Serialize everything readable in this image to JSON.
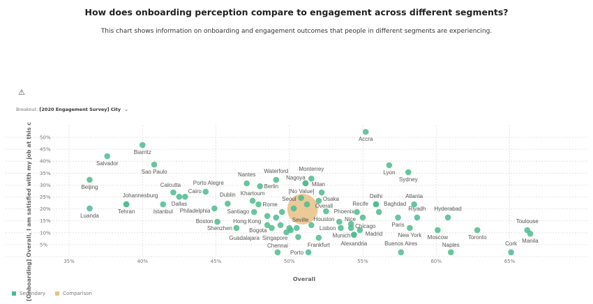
{
  "header": {
    "title": "How does onboarding perception compare to engagement across different segments?",
    "subtitle": "This chart shows information on onboarding and engagement outcomes that people in different segments are experiencing."
  },
  "warning_icon": "warning-triangle-icon",
  "breakout": {
    "label": "Breakout:",
    "value": "[2020 Engagement Survey] City",
    "icon": "chevron-down-icon"
  },
  "legend": [
    {
      "label": "Secondary",
      "color": "#4dbb8e"
    },
    {
      "label": "Comparison",
      "color": "#e2c48d"
    }
  ],
  "chart_data": {
    "type": "scatter",
    "xlabel": "Overall",
    "ylabel": "[Onboarding] Overall, I am satisfied with my job at this c",
    "xlim": [
      33,
      68
    ],
    "ylim": [
      0,
      55
    ],
    "x_ticks": [
      "35%",
      "40%",
      "45%",
      "50%",
      "55%",
      "60%",
      "65%"
    ],
    "x_tick_values": [
      35,
      40,
      45,
      50,
      55,
      60,
      65
    ],
    "y_ticks": [
      "5%",
      "10%",
      "15%",
      "20%",
      "25%",
      "30%",
      "35%",
      "40%",
      "45%",
      "50%"
    ],
    "y_tick_values": [
      5,
      10,
      15,
      20,
      25,
      30,
      35,
      40,
      45,
      50
    ],
    "grid": true,
    "legend_position": "bottom-left",
    "series": [
      {
        "name": "Secondary",
        "color": "#4dbb8e",
        "points": [
          {
            "label": "Accra",
            "x": 55.2,
            "y": 52.3
          },
          {
            "label": "Biarritz",
            "x": 40.0,
            "y": 46.8
          },
          {
            "label": "Salvador",
            "x": 37.6,
            "y": 42.1
          },
          {
            "label": "Sao Paulo",
            "x": 40.8,
            "y": 38.6
          },
          {
            "label": "Beijing",
            "x": 36.4,
            "y": 32.2
          },
          {
            "label": "Luanda",
            "x": 36.4,
            "y": 20.2
          },
          {
            "label": "Johannesburg",
            "x": 38.9,
            "y": 22.0
          },
          {
            "label": "Tehran",
            "x": 38.9,
            "y": 21.9
          },
          {
            "label": "Istanbul",
            "x": 41.4,
            "y": 21.9
          },
          {
            "label": "Calcutta",
            "x": 42.1,
            "y": 26.9
          },
          {
            "label": "Dallas",
            "x": 42.5,
            "y": 25.1
          },
          {
            "label": "Cairo",
            "x": 42.9,
            "y": 25.1
          },
          {
            "label": "Porto Alegre",
            "x": 44.3,
            "y": 27.2
          },
          {
            "label": "Philadelphia",
            "x": 44.9,
            "y": 20.2
          },
          {
            "label": "Dublin",
            "x": 45.8,
            "y": 22.2
          },
          {
            "label": "Boston",
            "x": 45.1,
            "y": 14.6
          },
          {
            "label": "Shenzhen",
            "x": 46.4,
            "y": 12.0
          },
          {
            "label": "Santiago",
            "x": 47.6,
            "y": 18.7
          },
          {
            "label": "Khartoum",
            "x": 47.5,
            "y": 23.4
          },
          {
            "label": "Rome",
            "x": 47.9,
            "y": 21.9
          },
          {
            "label": "Nantes",
            "x": 47.1,
            "y": 30.7
          },
          {
            "label": "Berlin",
            "x": 48.0,
            "y": 29.5
          },
          {
            "label": "Waterford",
            "x": 49.1,
            "y": 32.2
          },
          {
            "label": "Nagoya",
            "x": 51.1,
            "y": 30.8
          },
          {
            "label": "Milan",
            "x": 51.1,
            "y": 30.7
          },
          {
            "label": "Monterrey",
            "x": 51.5,
            "y": 32.7
          },
          {
            "label": "[No Value]",
            "x": 52.2,
            "y": 26.9
          },
          {
            "label": "Seoul",
            "x": 50.8,
            "y": 24.6
          },
          {
            "label": "",
            "x": 51.2,
            "y": 21.9
          },
          {
            "label": "Osaka",
            "x": 52.0,
            "y": 23.4
          },
          {
            "label": "",
            "x": 50.3,
            "y": 20.2
          },
          {
            "label": "",
            "x": 49.5,
            "y": 18.7
          },
          {
            "label": "Overall",
            "x": 52.5,
            "y": 19.0
          },
          {
            "label": "Phoenix",
            "x": 54.6,
            "y": 18.7
          },
          {
            "label": "Recife",
            "x": 55.9,
            "y": 21.9
          },
          {
            "label": "Delhi",
            "x": 55.9,
            "y": 22.0
          },
          {
            "label": "Baghdad",
            "x": 56.1,
            "y": 18.7
          },
          {
            "label": "Atlanta",
            "x": 58.5,
            "y": 21.9
          },
          {
            "label": "Riyadh",
            "x": 58.7,
            "y": 16.4
          },
          {
            "label": "Paris",
            "x": 57.4,
            "y": 16.4
          },
          {
            "label": "Hyderabad",
            "x": 60.8,
            "y": 16.4
          },
          {
            "label": "New York",
            "x": 58.2,
            "y": 12.0
          },
          {
            "label": "Moscow",
            "x": 60.1,
            "y": 11.1
          },
          {
            "label": "Toronto",
            "x": 62.8,
            "y": 11.1
          },
          {
            "label": "Toulouse",
            "x": 66.2,
            "y": 11.1
          },
          {
            "label": "Manila",
            "x": 66.4,
            "y": 9.6
          },
          {
            "label": "Naples",
            "x": 61.0,
            "y": 1.8
          },
          {
            "label": "Cork",
            "x": 65.1,
            "y": 1.8
          },
          {
            "label": "Buenos Aires",
            "x": 57.6,
            "y": 1.8
          },
          {
            "label": "Lyon",
            "x": 56.8,
            "y": 38.3
          },
          {
            "label": "Sydney",
            "x": 58.1,
            "y": 35.4
          },
          {
            "label": "Nice",
            "x": 55.0,
            "y": 16.4
          },
          {
            "label": "Chicago",
            "x": 54.2,
            "y": 13.7
          },
          {
            "label": "",
            "x": 54.2,
            "y": 12.0
          },
          {
            "label": "Madrid",
            "x": 54.8,
            "y": 11.1
          },
          {
            "label": "Alexandria",
            "x": 54.4,
            "y": 9.1
          },
          {
            "label": "Munich",
            "x": 54.4,
            "y": 9.2
          },
          {
            "label": "Lisbon",
            "x": 53.5,
            "y": 12.0
          },
          {
            "label": "Houston",
            "x": 53.4,
            "y": 14.6
          },
          {
            "label": "Seville",
            "x": 51.5,
            "y": 13.2
          },
          {
            "label": "Frankfurt",
            "x": 52.0,
            "y": 7.9
          },
          {
            "label": "Singapore",
            "x": 50.6,
            "y": 8.2
          },
          {
            "label": "Chennai",
            "x": 49.2,
            "y": 1.8
          },
          {
            "label": "Porto",
            "x": 51.3,
            "y": 1.8
          },
          {
            "label": "Hong Kong",
            "x": 48.5,
            "y": 17.0
          },
          {
            "label": "",
            "x": 49.1,
            "y": 16.4
          },
          {
            "label": "Guadalajara",
            "x": 48.5,
            "y": 13.2
          },
          {
            "label": "Bogota",
            "x": 48.8,
            "y": 12.0
          },
          {
            "label": "",
            "x": 49.4,
            "y": 13.2
          },
          {
            "label": "",
            "x": 50.0,
            "y": 12.0
          },
          {
            "label": "",
            "x": 50.5,
            "y": 12.0
          },
          {
            "label": "",
            "x": 50.1,
            "y": 11.1
          },
          {
            "label": "",
            "x": 49.8,
            "y": 10.2
          }
        ]
      },
      {
        "name": "Comparison",
        "color": "#e2b46c",
        "points": [
          {
            "label": "",
            "x": 50.9,
            "y": 19.9
          }
        ]
      }
    ]
  }
}
